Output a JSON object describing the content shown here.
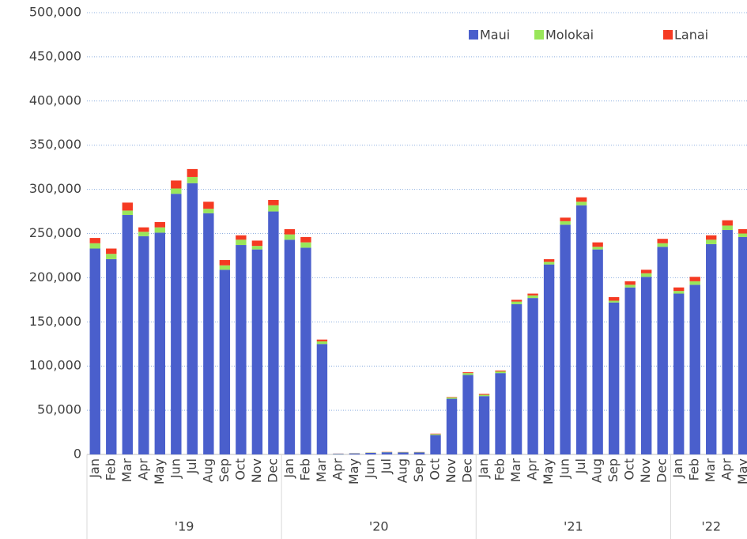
{
  "chart_data": {
    "type": "stacked_bar",
    "categories": [
      "Jan",
      "Feb",
      "Mar",
      "Apr",
      "May",
      "Jun",
      "Jul",
      "Aug",
      "Sep",
      "Oct",
      "Nov",
      "Dec",
      "Jan",
      "Feb",
      "Mar",
      "Apr",
      "May",
      "Jun",
      "Jul",
      "Aug",
      "Sep",
      "Oct",
      "Nov",
      "Dec",
      "Jan",
      "Feb",
      "Mar",
      "Apr",
      "May",
      "Jun",
      "Jul",
      "Aug",
      "Sep",
      "Oct",
      "Nov",
      "Dec",
      "Jan",
      "Feb",
      "Mar",
      "Apr",
      "May"
    ],
    "category_groups": [
      {
        "label": "'19",
        "count": 12
      },
      {
        "label": "'20",
        "count": 12
      },
      {
        "label": "'21",
        "count": 12
      },
      {
        "label": "'22",
        "count": 5
      }
    ],
    "series": [
      {
        "name": "Maui",
        "color": "#4a5fcc",
        "values": [
          233000,
          221000,
          271000,
          247000,
          251000,
          295000,
          307000,
          273000,
          209000,
          237000,
          232000,
          275000,
          243000,
          234000,
          125000,
          700,
          1200,
          1800,
          2500,
          2300,
          2300,
          22000,
          63000,
          90000,
          66000,
          92000,
          170000,
          177000,
          215000,
          260000,
          282000,
          232000,
          172000,
          189000,
          201000,
          235000,
          182000,
          192000,
          238000,
          254000,
          246000
        ]
      },
      {
        "name": "Molokai",
        "color": "#99e65a",
        "values": [
          6000,
          6000,
          5000,
          5000,
          6000,
          6000,
          7000,
          5000,
          5000,
          6000,
          4000,
          7000,
          6000,
          6000,
          3000,
          200,
          200,
          300,
          300,
          300,
          300,
          1000,
          1500,
          2000,
          1500,
          2000,
          3000,
          3000,
          3000,
          4000,
          4000,
          3000,
          2000,
          3000,
          4000,
          4000,
          3000,
          4000,
          5000,
          5000,
          4000
        ]
      },
      {
        "name": "Lanai",
        "color": "#f53a22",
        "values": [
          6000,
          6000,
          9000,
          5000,
          6000,
          9000,
          9000,
          8000,
          6000,
          5000,
          6000,
          6000,
          6000,
          6000,
          2000,
          100,
          100,
          100,
          200,
          200,
          200,
          500,
          500,
          1000,
          1000,
          1000,
          2000,
          2000,
          3000,
          4000,
          5000,
          5000,
          4000,
          4000,
          4000,
          5000,
          4000,
          5000,
          5000,
          6000,
          5000
        ]
      }
    ],
    "ylim": [
      0,
      500000
    ],
    "yticks": [
      0,
      {
        "value": 50000,
        "label": "50,000"
      },
      {
        "value": 100000,
        "label": "100,000"
      },
      {
        "value": 150000,
        "label": "150,000"
      },
      {
        "value": 200000,
        "label": "200,000"
      },
      {
        "value": 250000,
        "label": "250,000"
      },
      {
        "value": 300000,
        "label": "300,000"
      },
      {
        "value": 350000,
        "label": "350,000"
      },
      {
        "value": 400000,
        "label": "400,000"
      },
      {
        "value": 450000,
        "label": "450,000"
      },
      {
        "value": 500000,
        "label": "500,000"
      }
    ],
    "grid": true,
    "legend": "top-right"
  }
}
